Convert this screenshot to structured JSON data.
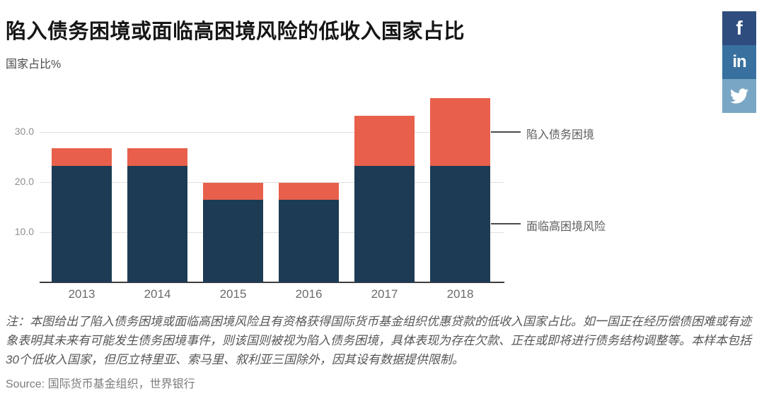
{
  "header": {
    "title": "陷入债务困境或面临高困境风险的低收入国家占比",
    "subtitle": "国家占比%"
  },
  "share": {
    "facebook_label": "f",
    "linkedin_label": "in",
    "facebook_color": "#2e4d7e",
    "linkedin_color": "#38719f",
    "twitter_color": "#79a6c4"
  },
  "chart_data": {
    "type": "bar",
    "stacked": true,
    "categories": [
      "2013",
      "2014",
      "2015",
      "2016",
      "2017",
      "2018"
    ],
    "series": [
      {
        "name": "面临高困境风险",
        "color": "#1d3b54",
        "values": [
          23.3,
          23.3,
          16.5,
          16.5,
          23.3,
          23.3
        ]
      },
      {
        "name": "陷入债务困境",
        "color": "#e8604c",
        "values": [
          3.4,
          3.4,
          3.3,
          3.3,
          10.0,
          13.4
        ]
      }
    ],
    "totals": [
      26.7,
      26.7,
      19.8,
      19.8,
      33.3,
      36.7
    ],
    "title": "陷入债务困境或面临高困境风险的低收入国家占比",
    "xlabel": "",
    "ylabel": "国家占比%",
    "ylim": [
      0,
      38
    ],
    "yticks": [
      {
        "value": 10,
        "label": "10.0"
      },
      {
        "value": 20,
        "label": "20.0"
      },
      {
        "value": 30,
        "label": "30.0"
      }
    ],
    "grid": true,
    "legend_position": "right-annotations"
  },
  "annotations": {
    "in_distress": "陷入债务困境",
    "high_risk": "面临高困境风险"
  },
  "notes": {
    "lines": [
      "注：本图给出了陷入债务困境或面临高困境风险且有资格获得国际货币基金组织优惠贷款的低收入国家占比。如一国正在经历偿债困难或有迹",
      "象表明其未来有可能发生债务困境事件，则该国则被视为陷入债务困境，具体表现为存在欠款、正在或即将进行债务结构调整等。本样本包括",
      "30个低收入国家，但厄立特里亚、索马里、叙利亚三国除外，因其设有数据提供限制。"
    ]
  },
  "source": "Source: 国际货币基金组织，世界银行"
}
